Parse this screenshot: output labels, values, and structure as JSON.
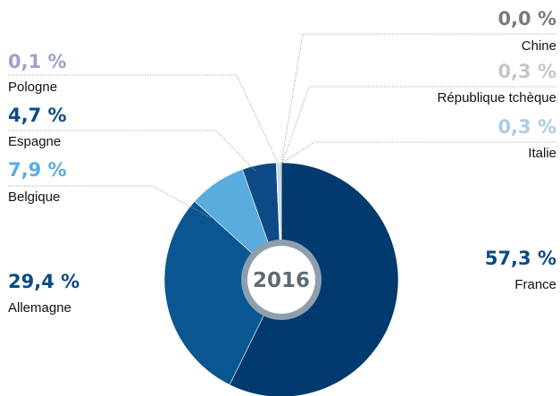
{
  "chart_data": {
    "type": "pie",
    "title": "2016",
    "labels": [
      "France",
      "Allemagne",
      "Belgique",
      "Espagne",
      "Pologne",
      "Italie",
      "République tchèque",
      "Chine"
    ],
    "values": [
      57.3,
      29.4,
      7.9,
      4.7,
      0.1,
      0.3,
      0.3,
      0.0
    ],
    "value_labels": [
      "57,3 %",
      "29,4 %",
      "7,9 %",
      "4,7 %",
      "0,1 %",
      "0,3 %",
      "0,3 %",
      "0,0 %"
    ],
    "colors": [
      "#003a6e",
      "#0a5690",
      "#5aacdc",
      "#0d4a85",
      "#9aa2c8",
      "#a8cce4",
      "#c6c6c6",
      "#7a7a7a"
    ],
    "label_colors": [
      "#0a4a85",
      "#0a4a85",
      "#5aacdc",
      "#0d4a85",
      "#9aa2c8",
      "#a8cce4",
      "#c6c6c6",
      "#7a7a7a"
    ]
  }
}
